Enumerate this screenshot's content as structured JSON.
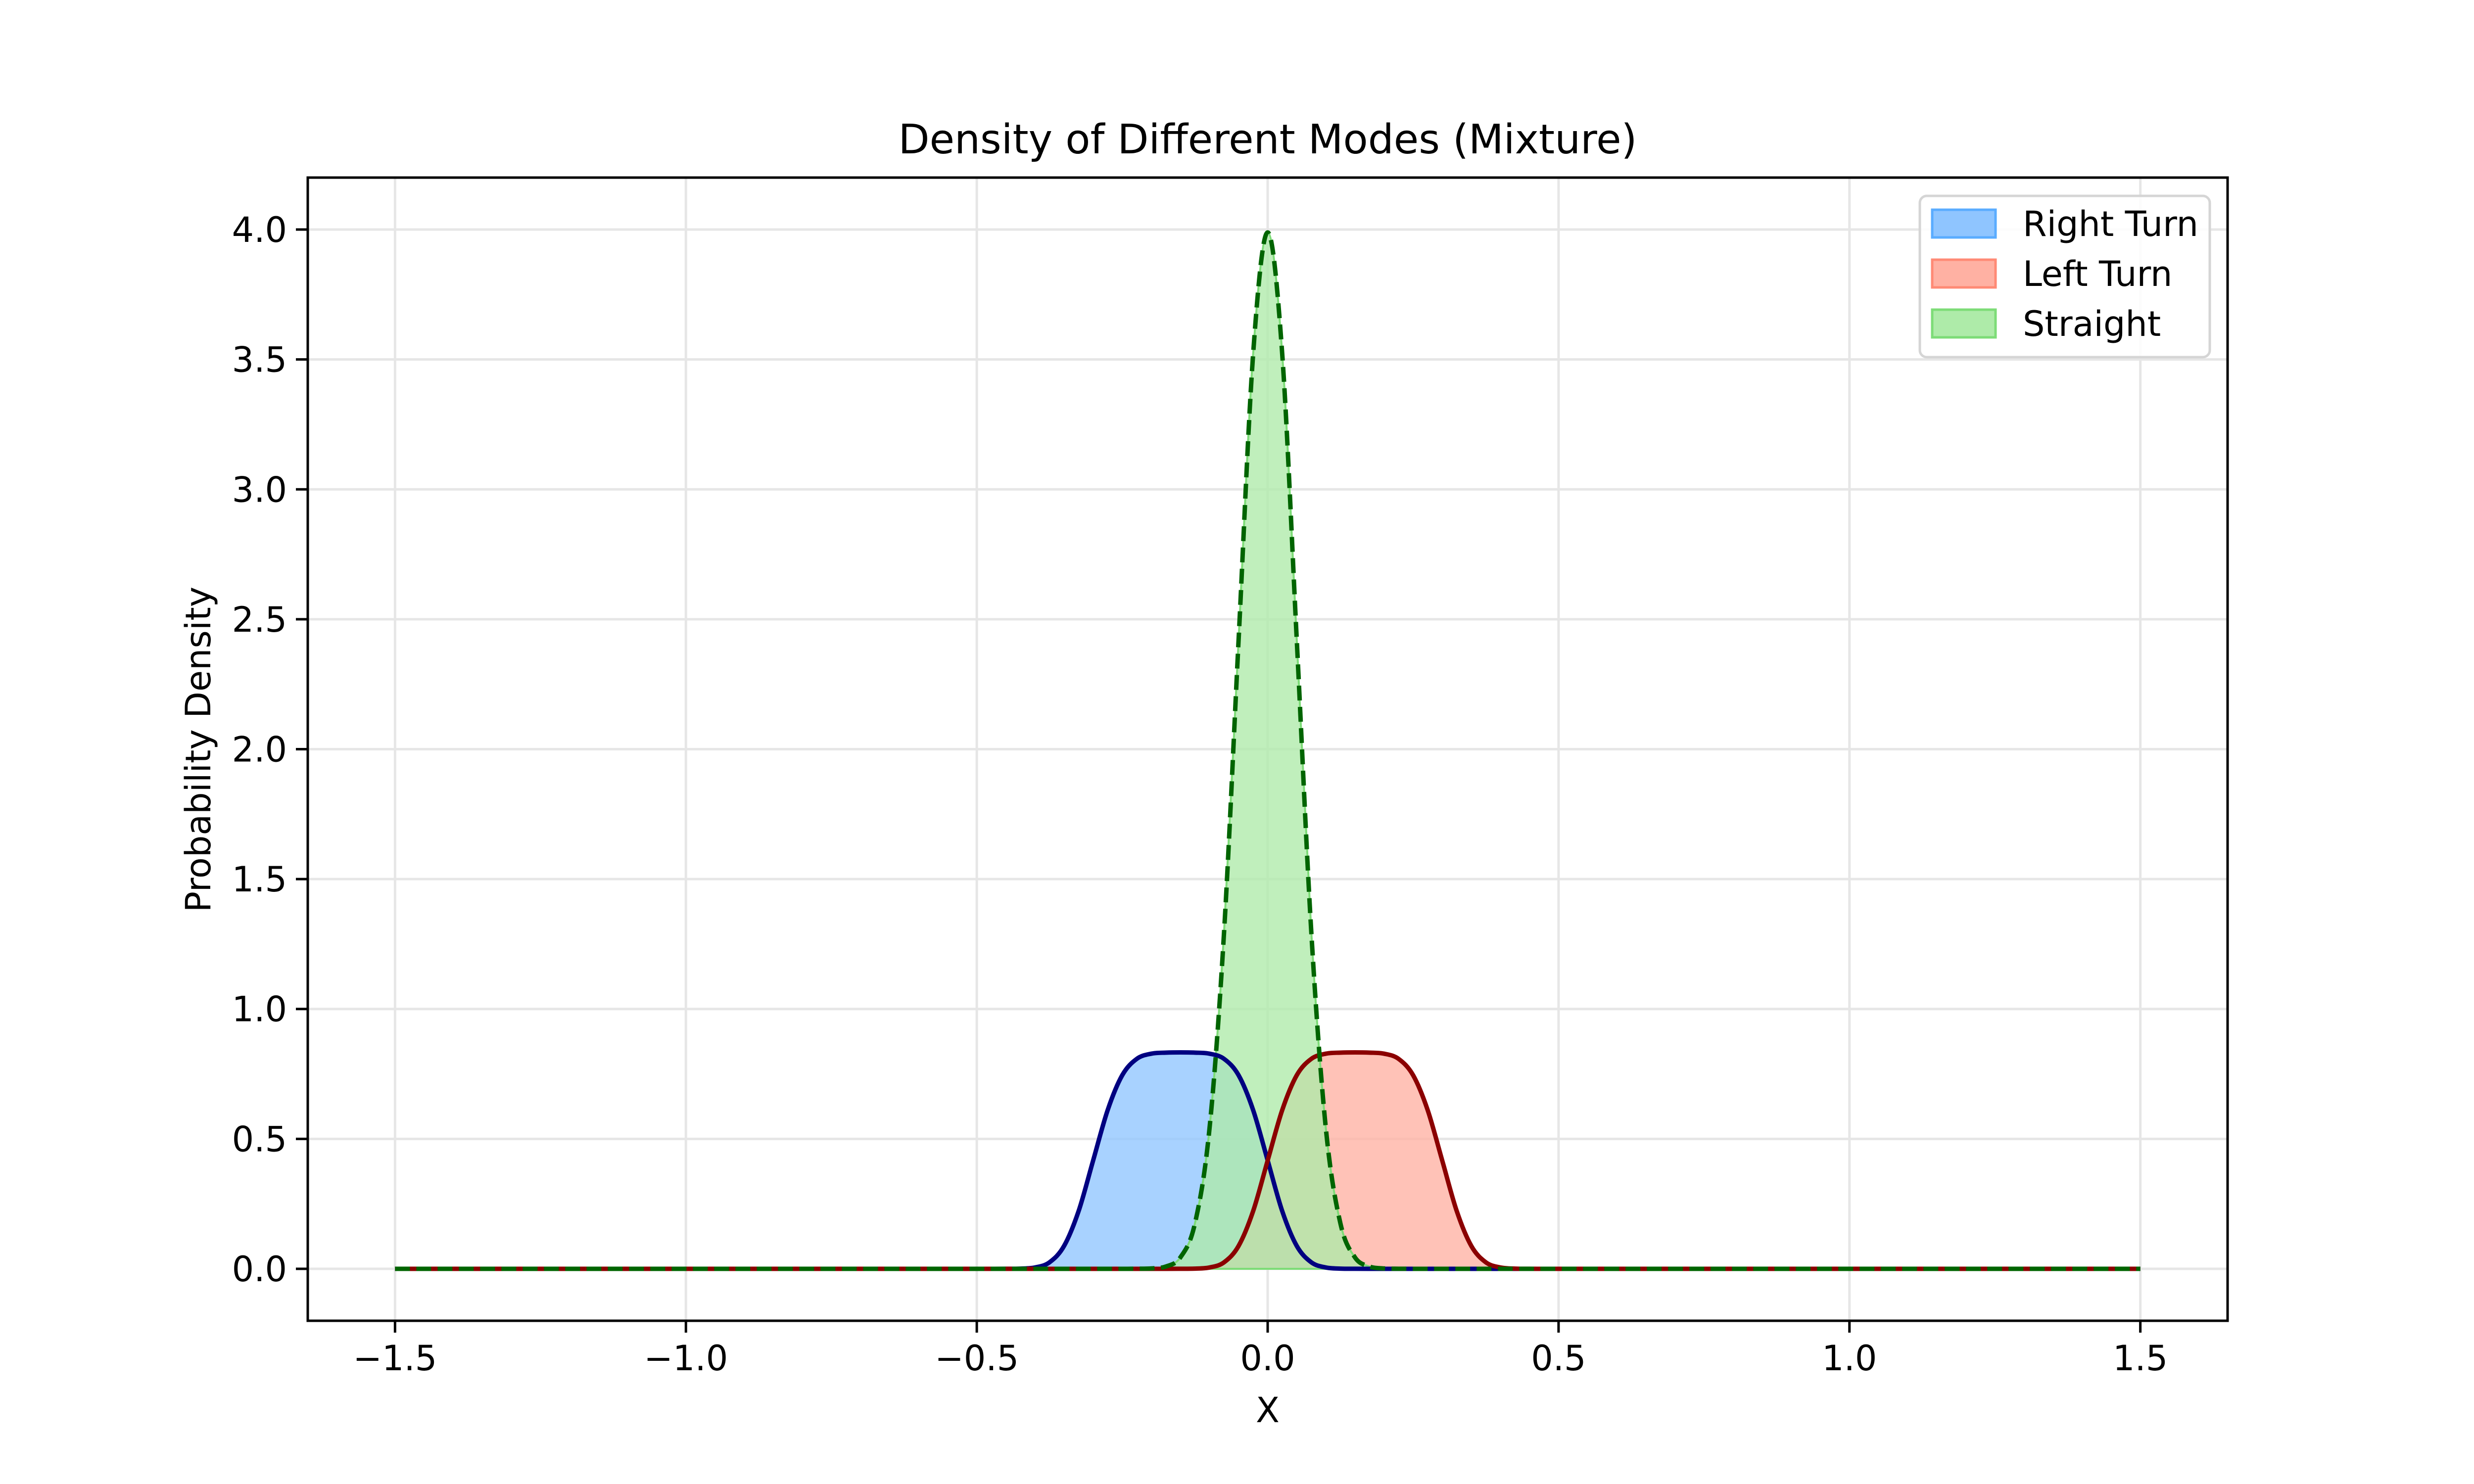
{
  "chart_data": {
    "type": "area",
    "title": "Density of Different Modes (Mixture)",
    "xlabel": "X",
    "ylabel": "Probability Density",
    "xlim": [
      -1.65,
      1.65
    ],
    "ylim": [
      -0.2,
      4.2
    ],
    "grid": true,
    "legend_placement": "top-right",
    "x_ticks": [
      -1.5,
      -1.0,
      -0.5,
      0.0,
      0.5,
      1.0,
      1.5
    ],
    "x_tick_labels": [
      "−1.5",
      "−1.0",
      "−0.5",
      "0.0",
      "0.5",
      "1.0",
      "1.5"
    ],
    "y_ticks": [
      0.0,
      0.5,
      1.0,
      1.5,
      2.0,
      2.5,
      3.0,
      3.5,
      4.0
    ],
    "y_tick_labels": [
      "0.0",
      "0.5",
      "1.0",
      "1.5",
      "2.0",
      "2.5",
      "3.0",
      "3.5",
      "4.0"
    ],
    "x": [
      -1.5,
      -0.5,
      -0.475,
      -0.45,
      -0.425,
      -0.4,
      -0.375,
      -0.35,
      -0.325,
      -0.3,
      -0.275,
      -0.25,
      -0.225,
      -0.2,
      -0.175,
      -0.15,
      -0.125,
      -0.1,
      -0.075,
      -0.05,
      -0.025,
      0.0,
      0.025,
      0.05,
      0.075,
      0.1,
      0.125,
      0.15,
      0.175,
      0.2,
      0.225,
      0.25,
      0.275,
      0.3,
      0.325,
      0.35,
      0.375,
      0.4,
      0.425,
      0.45,
      0.475,
      0.5,
      1.5
    ],
    "series": [
      {
        "name": "Right Turn",
        "fill_color": "#8fc5ff",
        "edge_color": "#5aacff",
        "line_color": "#000080",
        "line_style": "solid",
        "values": [
          0,
          0,
          0,
          0.0001,
          0.0007,
          0.005,
          0.025,
          0.088,
          0.222,
          0.417,
          0.611,
          0.745,
          0.808,
          0.828,
          0.832,
          0.833,
          0.832,
          0.828,
          0.808,
          0.745,
          0.611,
          0.417,
          0.222,
          0.088,
          0.025,
          0.005,
          0.0007,
          0.0001,
          0,
          0,
          0,
          0,
          0,
          0,
          0,
          0,
          0,
          0,
          0,
          0,
          0,
          0,
          0
        ]
      },
      {
        "name": "Left Turn",
        "fill_color": "#ffb1a3",
        "edge_color": "#ff8a75",
        "line_color": "#8b0000",
        "line_style": "solid",
        "values": [
          0,
          0,
          0,
          0,
          0,
          0,
          0,
          0,
          0,
          0,
          0,
          0,
          0,
          0,
          0,
          0.0001,
          0.0007,
          0.005,
          0.025,
          0.088,
          0.222,
          0.417,
          0.611,
          0.745,
          0.808,
          0.828,
          0.832,
          0.833,
          0.832,
          0.828,
          0.808,
          0.745,
          0.611,
          0.417,
          0.222,
          0.088,
          0.025,
          0.005,
          0.0007,
          0.0001,
          0,
          0,
          0
        ]
      },
      {
        "name": "Straight",
        "fill_color": "#aeeba9",
        "edge_color": "#7ddc77",
        "line_color": "#006400",
        "line_style": "dashed",
        "values": [
          0,
          0,
          0,
          0,
          0,
          0,
          0,
          0,
          0,
          0,
          0,
          0,
          0.0002,
          0.0013,
          0.0088,
          0.044,
          0.175,
          0.54,
          1.295,
          2.42,
          3.521,
          3.989,
          3.521,
          2.42,
          1.295,
          0.54,
          0.175,
          0.044,
          0.0088,
          0.0013,
          0.0002,
          0,
          0,
          0,
          0,
          0,
          0,
          0,
          0,
          0,
          0,
          0,
          0
        ]
      }
    ]
  }
}
